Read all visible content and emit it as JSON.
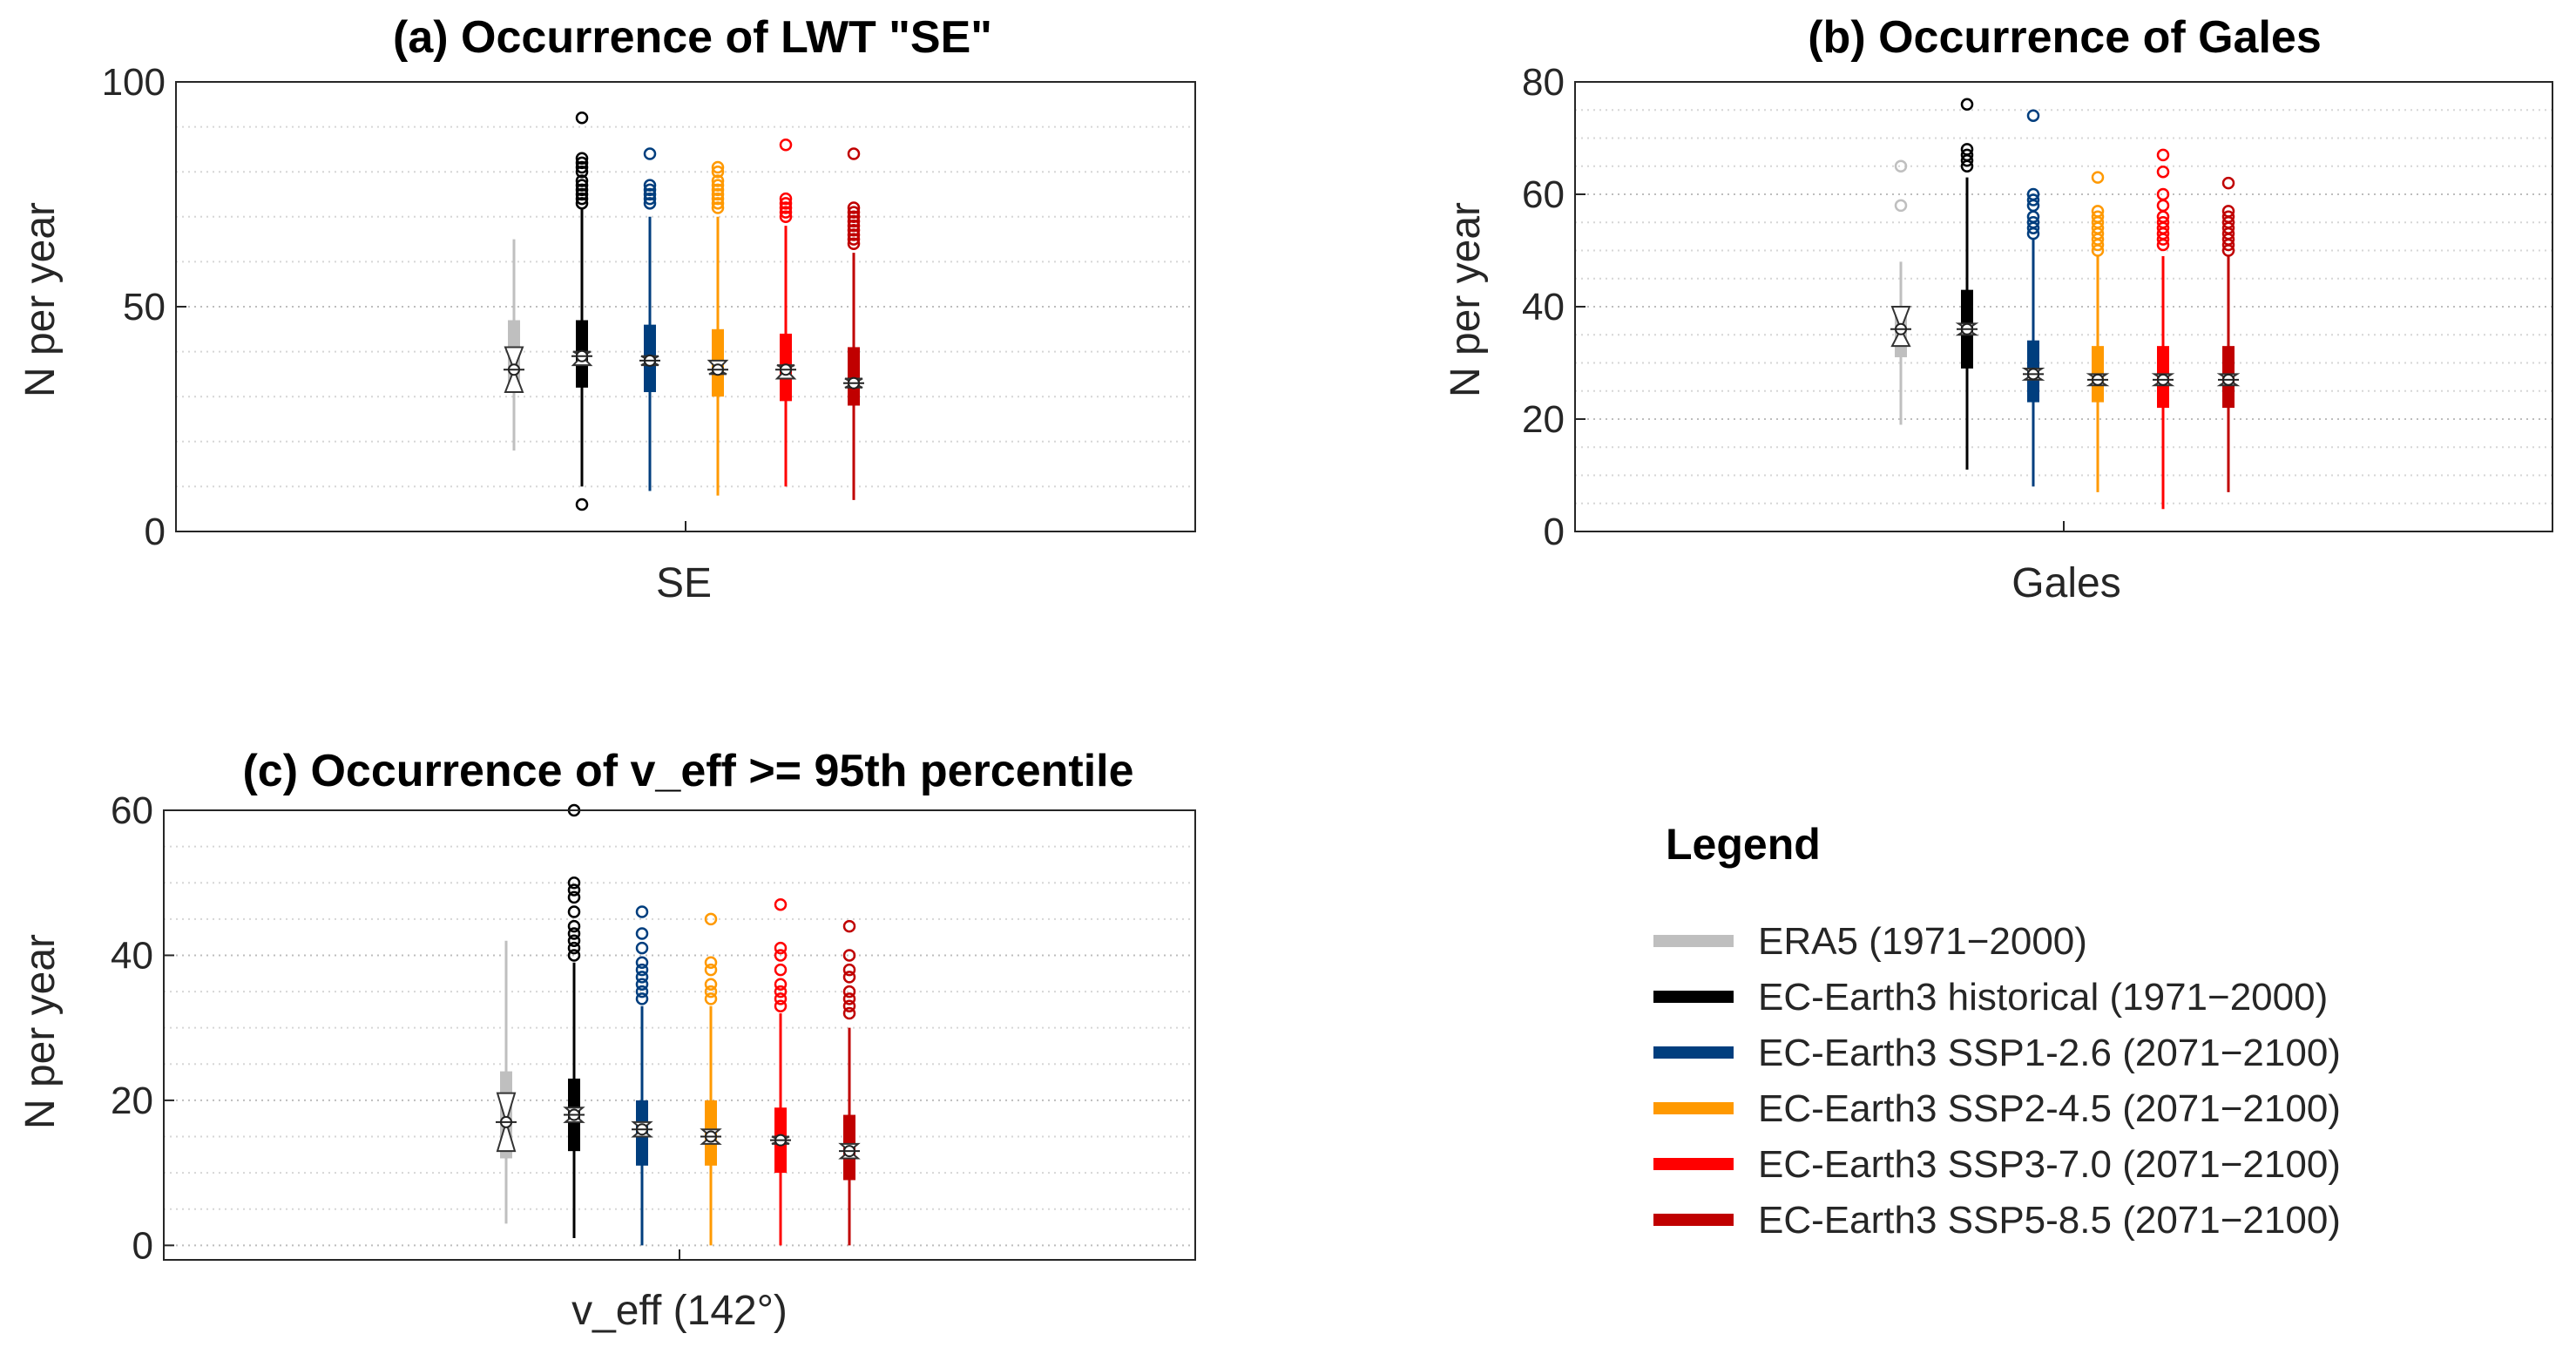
{
  "chart_data": [
    {
      "type": "box",
      "title": "(a) Occurrence of LWT \"SE\"",
      "ylabel": "N per year",
      "category": "SE",
      "ylim": [
        0,
        100
      ],
      "yticks": [
        "0",
        "50",
        "100"
      ],
      "minor_grid_step": 10,
      "series": [
        {
          "name": "ERA5 (1971−2000)",
          "color": "#bfbfbf",
          "q1": 31,
          "median": 36,
          "q3": 47,
          "whisker_low": 18,
          "whisker_high": 65,
          "notch": [
            31,
            41
          ],
          "outliers": []
        },
        {
          "name": "EC-Earth3 historical (1971−2000)",
          "color": "#000000",
          "q1": 32,
          "median": 39,
          "q3": 47,
          "whisker_low": 10,
          "whisker_high": 72,
          "notch": [
            37,
            40
          ],
          "outliers": [
            6,
            73,
            74,
            75,
            76,
            77,
            78,
            80,
            81,
            82,
            83,
            92
          ]
        },
        {
          "name": "EC-Earth3 SSP1-2.6 (2071−2100)",
          "color": "#003e7e",
          "q1": 31,
          "median": 38,
          "q3": 46,
          "whisker_low": 9,
          "whisker_high": 70,
          "notch": [
            37,
            39
          ],
          "outliers": [
            73,
            74,
            75,
            76,
            77,
            84
          ]
        },
        {
          "name": "EC-Earth3 SSP2-4.5 (2071−2100)",
          "color": "#ff9900",
          "q1": 30,
          "median": 36,
          "q3": 45,
          "whisker_low": 8,
          "whisker_high": 70,
          "notch": [
            35,
            38
          ],
          "outliers": [
            72,
            73,
            74,
            75,
            76,
            77,
            78,
            80,
            81
          ]
        },
        {
          "name": "EC-Earth3 SSP3-7.0 (2071−2100)",
          "color": "#ff0000",
          "q1": 29,
          "median": 36,
          "q3": 44,
          "whisker_low": 10,
          "whisker_high": 68,
          "notch": [
            34,
            37
          ],
          "outliers": [
            70,
            71,
            72,
            73,
            74,
            86
          ]
        },
        {
          "name": "EC-Earth3 SSP5-8.5 (2071−2100)",
          "color": "#c00000",
          "q1": 28,
          "median": 33,
          "q3": 41,
          "whisker_low": 7,
          "whisker_high": 62,
          "notch": [
            32,
            34
          ],
          "outliers": [
            64,
            65,
            66,
            67,
            68,
            69,
            70,
            71,
            72,
            84
          ]
        }
      ]
    },
    {
      "type": "box",
      "title": "(b) Occurrence of Gales",
      "ylabel": "N per year",
      "category": "Gales",
      "ylim": [
        0,
        80
      ],
      "yticks": [
        "0",
        "20",
        "40",
        "60",
        "80"
      ],
      "minor_grid_step": 5,
      "series": [
        {
          "name": "ERA5 (1971−2000)",
          "color": "#bfbfbf",
          "q1": 31,
          "median": 36,
          "q3": 39,
          "whisker_low": 19,
          "whisker_high": 48,
          "notch": [
            33,
            40
          ],
          "outliers": [
            58,
            65
          ]
        },
        {
          "name": "EC-Earth3 historical (1971−2000)",
          "color": "#000000",
          "q1": 29,
          "median": 36,
          "q3": 43,
          "whisker_low": 11,
          "whisker_high": 63,
          "notch": [
            35,
            37
          ],
          "outliers": [
            65,
            66,
            67,
            68,
            76
          ]
        },
        {
          "name": "EC-Earth3 SSP1-2.6 (2071−2100)",
          "color": "#003e7e",
          "q1": 23,
          "median": 28,
          "q3": 34,
          "whisker_low": 8,
          "whisker_high": 52,
          "notch": [
            27,
            29
          ],
          "outliers": [
            53,
            54,
            55,
            56,
            58,
            59,
            60,
            74
          ]
        },
        {
          "name": "EC-Earth3 SSP2-4.5 (2071−2100)",
          "color": "#ff9900",
          "q1": 23,
          "median": 27,
          "q3": 33,
          "whisker_low": 7,
          "whisker_high": 49,
          "notch": [
            26,
            28
          ],
          "outliers": [
            50,
            51,
            52,
            53,
            54,
            55,
            56,
            57,
            63
          ]
        },
        {
          "name": "EC-Earth3 SSP3-7.0 (2071−2100)",
          "color": "#ff0000",
          "q1": 22,
          "median": 27,
          "q3": 33,
          "whisker_low": 4,
          "whisker_high": 49,
          "notch": [
            26,
            28
          ],
          "outliers": [
            51,
            52,
            53,
            54,
            55,
            56,
            58,
            60,
            64,
            67
          ]
        },
        {
          "name": "EC-Earth3 SSP5-8.5 (2071−2100)",
          "color": "#c00000",
          "q1": 22,
          "median": 27,
          "q3": 33,
          "whisker_low": 7,
          "whisker_high": 49,
          "notch": [
            26,
            28
          ],
          "outliers": [
            50,
            51,
            52,
            53,
            54,
            55,
            56,
            57,
            62
          ]
        }
      ]
    },
    {
      "type": "box",
      "title": "(c) Occurrence of v_eff >= 95th percentile",
      "ylabel": "N per year",
      "category": "v_eff (142°)",
      "ylim": [
        -2,
        60
      ],
      "yticks": [
        "0",
        "20",
        "40",
        "60"
      ],
      "minor_grid_step": 5,
      "series": [
        {
          "name": "ERA5 (1971−2000)",
          "color": "#bfbfbf",
          "q1": 12,
          "median": 17,
          "q3": 24,
          "whisker_low": 3,
          "whisker_high": 42,
          "notch": [
            13,
            21
          ],
          "outliers": []
        },
        {
          "name": "EC-Earth3 historical (1971−2000)",
          "color": "#000000",
          "q1": 13,
          "median": 18,
          "q3": 23,
          "whisker_low": 1,
          "whisker_high": 39,
          "notch": [
            17,
            19
          ],
          "outliers": [
            40,
            41,
            42,
            43,
            44,
            46,
            48,
            49,
            50,
            60
          ]
        },
        {
          "name": "EC-Earth3 SSP1-2.6 (2071−2100)",
          "color": "#003e7e",
          "q1": 11,
          "median": 16,
          "q3": 20,
          "whisker_low": 0,
          "whisker_high": 33,
          "notch": [
            15,
            17
          ],
          "outliers": [
            34,
            35,
            36,
            37,
            38,
            39,
            41,
            43,
            46
          ]
        },
        {
          "name": "EC-Earth3 SSP2-4.5 (2071−2100)",
          "color": "#ff9900",
          "q1": 11,
          "median": 15,
          "q3": 20,
          "whisker_low": 0,
          "whisker_high": 33,
          "notch": [
            14,
            16
          ],
          "outliers": [
            34,
            35,
            36,
            38,
            39,
            45
          ]
        },
        {
          "name": "EC-Earth3 SSP3-7.0 (2071−2100)",
          "color": "#ff0000",
          "q1": 10,
          "median": 14.5,
          "q3": 19,
          "whisker_low": 0,
          "whisker_high": 32,
          "notch": [
            14,
            15
          ],
          "outliers": [
            33,
            34,
            35,
            36,
            38,
            40,
            41,
            47
          ]
        },
        {
          "name": "EC-Earth3 SSP5-8.5 (2071−2100)",
          "color": "#c00000",
          "q1": 9,
          "median": 13,
          "q3": 18,
          "whisker_low": 0,
          "whisker_high": 30,
          "notch": [
            12,
            14
          ],
          "outliers": [
            32,
            33,
            34,
            35,
            37,
            38,
            40,
            44
          ]
        }
      ]
    }
  ],
  "legend": {
    "title": "Legend",
    "entries": [
      {
        "label": "ERA5 (1971−2000)",
        "color": "#bfbfbf"
      },
      {
        "label": "EC-Earth3 historical (1971−2000)",
        "color": "#000000"
      },
      {
        "label": "EC-Earth3 SSP1-2.6 (2071−2100)",
        "color": "#003e7e"
      },
      {
        "label": "EC-Earth3 SSP2-4.5 (2071−2100)",
        "color": "#ff9900"
      },
      {
        "label": "EC-Earth3 SSP3-7.0 (2071−2100)",
        "color": "#ff0000"
      },
      {
        "label": "EC-Earth3 SSP5-8.5 (2071−2100)",
        "color": "#c00000"
      }
    ]
  }
}
